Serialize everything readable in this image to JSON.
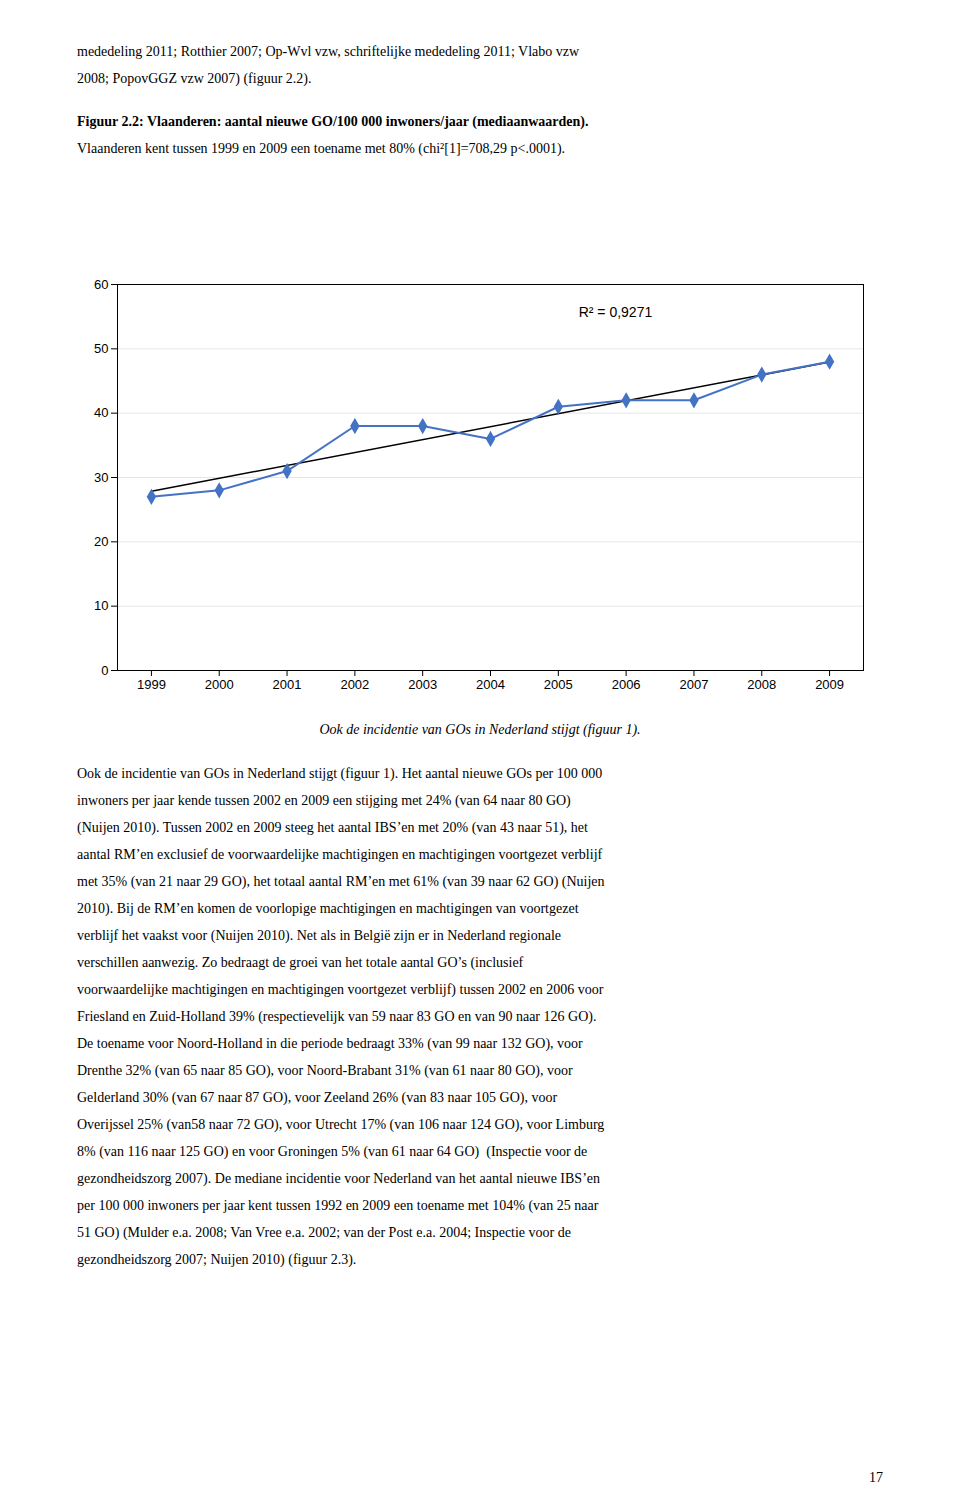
{
  "chart_data": {
    "type": "line",
    "x": [
      1999,
      2000,
      2001,
      2002,
      2003,
      2004,
      2005,
      2006,
      2007,
      2008,
      2009
    ],
    "values": [
      27,
      28,
      31,
      38,
      38,
      36,
      41,
      42,
      42,
      46,
      48
    ],
    "color": "#4472C4",
    "marker": "diamond",
    "trend_line": {
      "x": [
        1999,
        2009
      ],
      "values": [
        27.8636364,
        47.9545455
      ],
      "color": "#000000"
    },
    "annotations": [
      {
        "text": "R² = 0,9271",
        "x": 2005.3,
        "y": 56.5
      }
    ],
    "xlim": [
      1998.5,
      2009.5
    ],
    "xticks": [
      1999,
      2000,
      2001,
      2002,
      2003,
      2004,
      2005,
      2006,
      2007,
      2008,
      2009
    ],
    "ylim": [
      0,
      60
    ],
    "yticks": [
      0,
      10,
      20,
      30,
      40,
      50,
      60
    ],
    "grid": true
  },
  "page": {
    "top_paragraph": [
      "mededeling 2011; Rotthier 2007; Op-Wvl vzw, schriftelijke mededeling 2011; Vlabo vzw",
      "2008; PopovGGZ vzw 2007) (figuur 2.2)."
    ],
    "figure_heading": [
      "Figuur 2.2: Vlaanderen: aantal nieuwe GO/100 000 inwoners/jaar (mediaanwaarden).",
      "Vlaanderen kent tussen 1999 en 2009 een toename met 80% (chi²[1]=708,29 p<.0001)."
    ],
    "caption": "Ook de incidentie van GOs in Nederland stijgt (figuur 1).",
    "body_text": [
      "Ook de incidentie van GOs in Nederland stijgt (figuur 1). Het aantal nieuwe GOs per 100 000",
      "inwoners per jaar kende tussen 2002 en 2009 een stijging met 24% (van 64 naar 80 GO)",
      "(Nuijen 2010). Tussen 2002 en 2009 steeg het aantal IBS’en met 20% (van 43 naar 51), het",
      "aantal RM’en exclusief de voorwaardelijke machtigingen en machtigingen voortgezet verblijf",
      "met 35% (van 21 naar 29 GO), het totaal aantal RM’en met 61% (van 39 naar 62 GO) (Nuijen",
      "2010). Bij de RM’en komen de voorlopige machtigingen en machtigingen van voortgezet",
      "verblijf het vaakst voor (Nuijen 2010). Net als in België zijn er in Nederland regionale",
      "verschillen aanwezig. Zo bedraagt de groei van het totale aantal GO’s (inclusief",
      "voorwaardelijke machtigingen en machtigingen voortgezet verblijf) tussen 2002 en 2006 voor",
      "Friesland en Zuid-Holland 39% (respectievelijk van 59 naar 83 GO en van 90 naar 126 GO).",
      "De toename voor Noord-Holland in die periode bedraagt 33% (van 99 naar 132 GO), voor",
      "Drenthe 32% (van 65 naar 85 GO), voor Noord-Brabant 31% (van 61 naar 80 GO), voor",
      "Gelderland 30% (van 67 naar 87 GO), voor Zeeland 26% (van 83 naar 105 GO), voor",
      "Overijssel 25% (van58 naar 72 GO), voor Utrecht 17% (van 106 naar 124 GO), voor Limburg",
      "8% (van 116 naar 125 GO) en voor Groningen 5% (van 61 naar 64 GO)  (Inspectie voor de",
      "gezondheidszorg 2007). De mediane incidentie voor Nederland van het aantal nieuwe IBS’en",
      "per 100 000 inwoners per jaar kent tussen 1992 en 2009 een toename met 104% (van 25 naar",
      "51 GO) (Mulder e.a. 2008; Van Vree e.a. 2002; van der Post e.a. 2004; Inspectie voor de",
      "gezondheidszorg 2007; Nuijen 2010) (figuur 2.3)."
    ],
    "page_number": "17"
  }
}
